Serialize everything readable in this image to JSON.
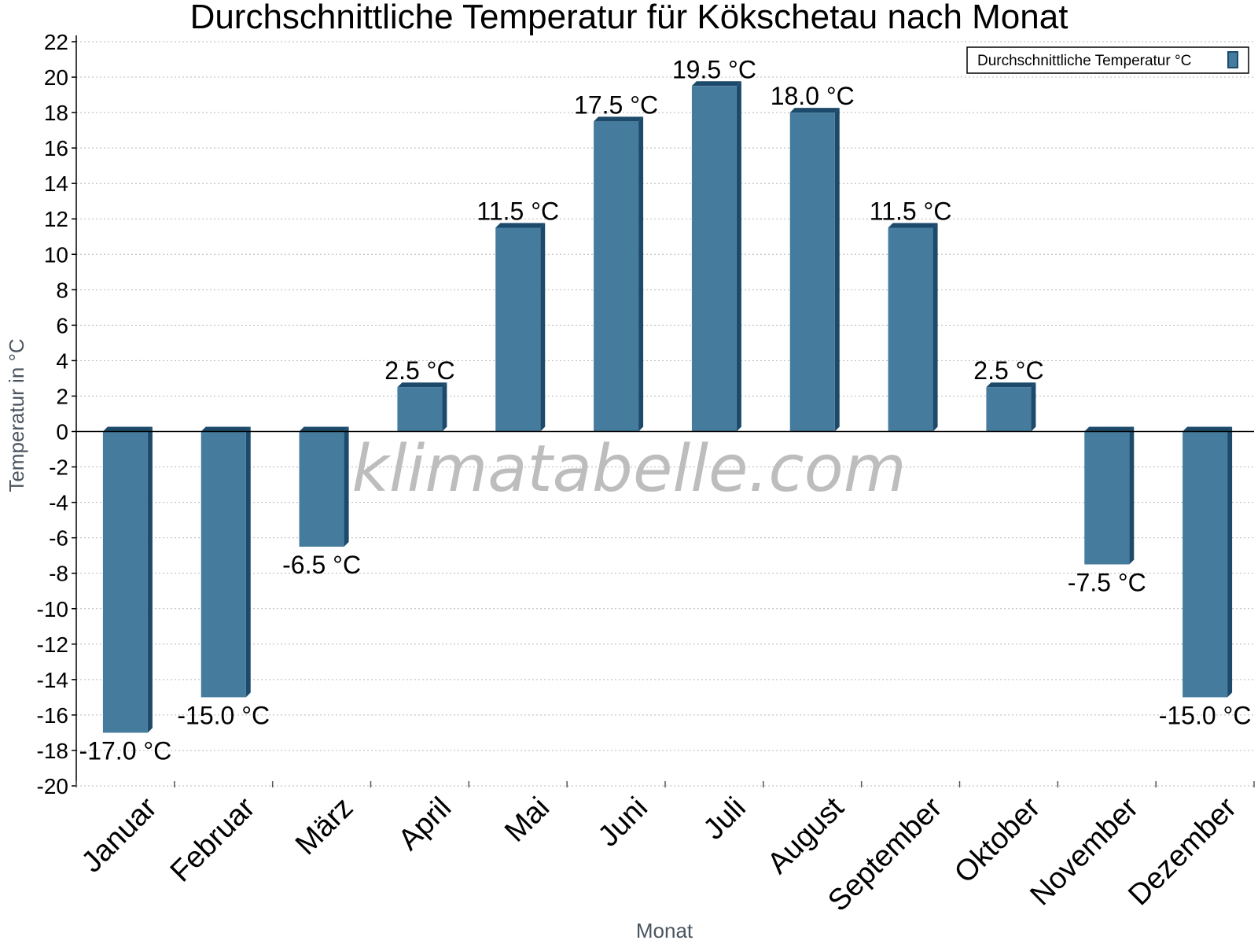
{
  "chart_data": {
    "type": "bar",
    "title": "Durchschnittliche Temperatur für Kökschetau nach Monat",
    "xlabel": "Monat",
    "ylabel": "Temperatur in °C",
    "categories": [
      "Januar",
      "Februar",
      "März",
      "April",
      "Mai",
      "Juni",
      "Juli",
      "August",
      "September",
      "Oktober",
      "November",
      "Dezember"
    ],
    "series": [
      {
        "name": "Durchschnittliche Temperatur °C",
        "values": [
          -17.0,
          -15.0,
          -6.5,
          2.5,
          11.5,
          17.5,
          19.5,
          18.0,
          11.5,
          2.5,
          -7.5,
          -15.0
        ],
        "labels": [
          "-17.0 °C",
          "-15.0 °C",
          "-6.5 °C",
          "2.5 °C",
          "11.5 °C",
          "17.5 °C",
          "19.5 °C",
          "18.0 °C",
          "11.5 °C",
          "2.5 °C",
          "-7.5 °C",
          "-15.0 °C"
        ]
      }
    ],
    "ylim": [
      -20,
      22
    ],
    "yticks": [
      "-20",
      "-18",
      "-16",
      "-14",
      "-12",
      "-10",
      "-8",
      "-6",
      "-4",
      "-2",
      "0",
      "2",
      "4",
      "6",
      "8",
      "10",
      "12",
      "14",
      "16",
      "18",
      "20",
      "22"
    ],
    "grid": true,
    "legend_position": "top-right",
    "colors": {
      "bar": "#457b9d",
      "bar_side": "#1d4a6b"
    },
    "watermark": "klimatabelle.com"
  }
}
